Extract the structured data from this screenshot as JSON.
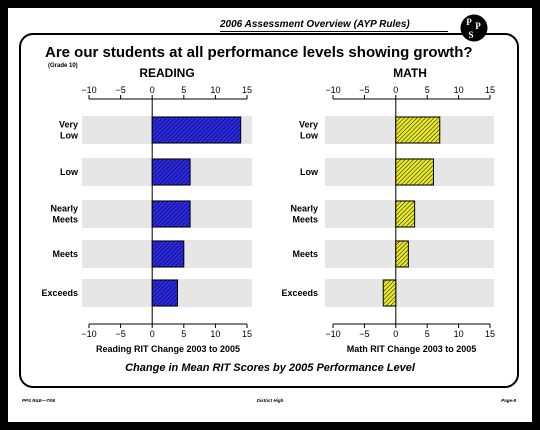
{
  "header": {
    "title": "2006 Assessment Overview (AYP Rules)",
    "logo_text": [
      "P",
      "P",
      "S"
    ]
  },
  "title": "Are our students at all performance levels showing growth?",
  "subtitle": "(Grade 10)",
  "caption": "Change in Mean RIT Scores by 2005 Performance Level",
  "footer": {
    "left": "PPS R&E—7/06",
    "center": "District High",
    "right": "Page-8"
  },
  "chart_data": [
    {
      "type": "bar",
      "orientation": "horizontal",
      "title": "READING",
      "xlabel": "Reading RIT Change 2003 to 2005",
      "categories": [
        "Very Low",
        "Low",
        "Nearly Meets",
        "Meets",
        "Exceeds"
      ],
      "values": [
        14,
        6,
        6,
        5,
        4
      ],
      "xlim": [
        -10,
        15
      ],
      "ticks": [
        "−10",
        "−5",
        "0",
        "5",
        "10",
        "15"
      ],
      "tick_values": [
        -10,
        -5,
        0,
        5,
        10,
        15
      ],
      "bar_color": "#2a2ae6",
      "pattern": "diagonal-hatch"
    },
    {
      "type": "bar",
      "orientation": "horizontal",
      "title": "MATH",
      "xlabel": "Math RIT Change 2003 to 2005",
      "categories": [
        "Very Low",
        "Low",
        "Nearly Meets",
        "Meets",
        "Exceeds"
      ],
      "values": [
        7,
        6,
        3,
        2,
        -2
      ],
      "xlim": [
        -10,
        15
      ],
      "ticks": [
        "−10",
        "−5",
        "0",
        "5",
        "10",
        "15"
      ],
      "tick_values": [
        -10,
        -5,
        0,
        5,
        10,
        15
      ],
      "bar_color": "#e6e62a",
      "pattern": "diagonal-hatch"
    }
  ]
}
